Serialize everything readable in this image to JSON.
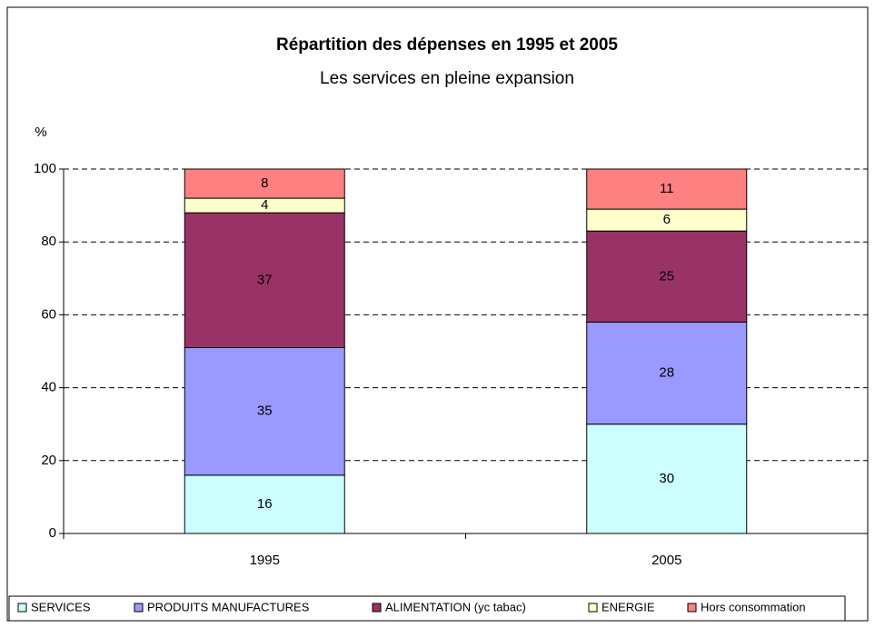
{
  "chart_data": {
    "type": "stacked_bar",
    "title": "Répartition des dépenses en 1995 et 2005",
    "subtitle": "Les services en pleine expansion",
    "y_label": "%",
    "categories": [
      "1995",
      "2005"
    ],
    "series": [
      {
        "name": "SERVICES",
        "color": "#ccffff",
        "values": [
          16,
          30
        ]
      },
      {
        "name": "PRODUITS MANUFACTURES",
        "color": "#9999ff",
        "values": [
          35,
          28
        ]
      },
      {
        "name": "ALIMENTATION (yc tabac)",
        "color": "#993366",
        "values": [
          37,
          25
        ]
      },
      {
        "name": "ENERGIE",
        "color": "#ffffcc",
        "values": [
          4,
          6
        ]
      },
      {
        "name": "Hors consommation",
        "color": "#ff8080",
        "values": [
          8,
          11
        ]
      }
    ],
    "ylim": [
      0,
      100
    ],
    "yticks": [
      0,
      20,
      40,
      60,
      80,
      100
    ],
    "grid": true,
    "legend": "bottom"
  }
}
